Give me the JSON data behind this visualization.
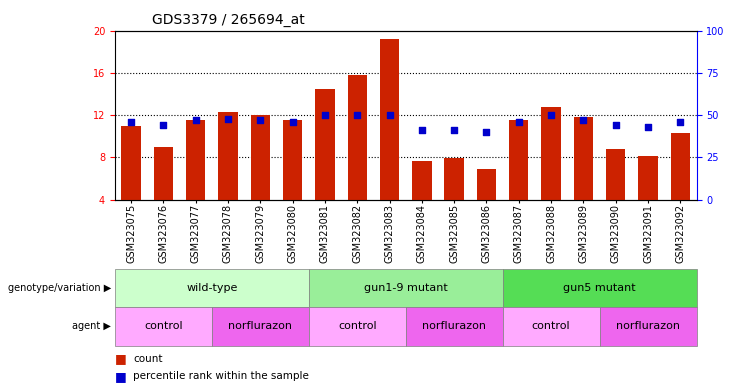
{
  "title": "GDS3379 / 265694_at",
  "samples": [
    "GSM323075",
    "GSM323076",
    "GSM323077",
    "GSM323078",
    "GSM323079",
    "GSM323080",
    "GSM323081",
    "GSM323082",
    "GSM323083",
    "GSM323084",
    "GSM323085",
    "GSM323086",
    "GSM323087",
    "GSM323088",
    "GSM323089",
    "GSM323090",
    "GSM323091",
    "GSM323092"
  ],
  "counts": [
    11.0,
    9.0,
    11.5,
    12.3,
    12.0,
    11.5,
    14.5,
    15.8,
    19.2,
    7.7,
    7.9,
    6.9,
    11.5,
    12.8,
    11.8,
    8.8,
    8.1,
    10.3
  ],
  "percentiles": [
    46,
    44,
    47,
    48,
    47,
    46,
    50,
    50,
    50,
    41,
    41,
    40,
    46,
    50,
    47,
    44,
    43,
    46
  ],
  "ylim_left": [
    4,
    20
  ],
  "ylim_right": [
    0,
    100
  ],
  "yticks_left": [
    4,
    8,
    12,
    16,
    20
  ],
  "yticks_right": [
    0,
    25,
    50,
    75,
    100
  ],
  "bar_color": "#CC2200",
  "dot_color": "#0000CC",
  "plot_bg": "#FFFFFF",
  "genotype_groups": [
    {
      "label": "wild-type",
      "start": 0,
      "end": 5,
      "color": "#CCFFCC"
    },
    {
      "label": "gun1-9 mutant",
      "start": 6,
      "end": 11,
      "color": "#99EE99"
    },
    {
      "label": "gun5 mutant",
      "start": 12,
      "end": 17,
      "color": "#55DD55"
    }
  ],
  "agent_groups": [
    {
      "label": "control",
      "start": 0,
      "end": 2,
      "color": "#FFAAFF"
    },
    {
      "label": "norflurazon",
      "start": 3,
      "end": 5,
      "color": "#EE66EE"
    },
    {
      "label": "control",
      "start": 6,
      "end": 8,
      "color": "#FFAAFF"
    },
    {
      "label": "norflurazon",
      "start": 9,
      "end": 11,
      "color": "#EE66EE"
    },
    {
      "label": "control",
      "start": 12,
      "end": 14,
      "color": "#FFAAFF"
    },
    {
      "label": "norflurazon",
      "start": 15,
      "end": 17,
      "color": "#EE66EE"
    }
  ],
  "legend_count_color": "#CC2200",
  "legend_dot_color": "#0000CC",
  "title_fontsize": 10,
  "tick_fontsize": 7,
  "label_fontsize": 8
}
